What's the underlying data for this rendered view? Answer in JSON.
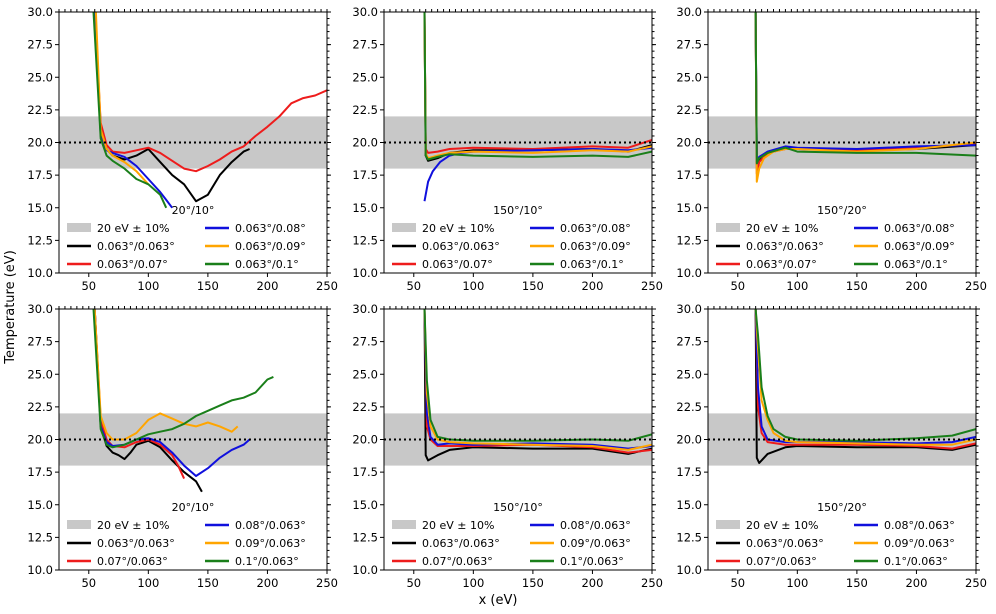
{
  "figure": {
    "xlabel": "x (eV)",
    "ylabel": "Temperature (eV)",
    "xlim": [
      25,
      250
    ],
    "ylim": [
      10,
      30
    ],
    "xticks": [
      50,
      100,
      150,
      200,
      250
    ],
    "yticks": [
      10.0,
      12.5,
      15.0,
      17.5,
      20.0,
      22.5,
      25.0,
      27.5,
      30.0
    ],
    "ytick_labels": [
      "10.0",
      "12.5",
      "15.0",
      "17.5",
      "20.0",
      "22.5",
      "25.0",
      "27.5",
      "30.0"
    ],
    "band": {
      "label": "20 eV ± 10%",
      "low": 18,
      "high": 22,
      "color": "#c8c8c8"
    },
    "reference_line": 20,
    "colors": {
      "black": "#000000",
      "red": "#ee1c1c",
      "blue": "#1010dd",
      "orange": "#ffa500",
      "green": "#1a7f1a"
    }
  },
  "chart_data": [
    {
      "type": "line",
      "title": "20°/10°",
      "legend": [
        "20 eV ± 10%",
        "0.063°/0.063°",
        "0.063°/0.07°",
        "0.063°/0.08°",
        "0.063°/0.09°",
        "0.063°/0.1°"
      ],
      "series": [
        {
          "name": "0.063°/0.063°",
          "color": "black",
          "x": [
            55,
            60,
            65,
            70,
            80,
            90,
            100,
            110,
            120,
            130,
            140,
            150,
            160,
            170,
            180,
            185
          ],
          "y": [
            30,
            21.0,
            19.5,
            19.0,
            18.7,
            19.0,
            19.5,
            18.5,
            17.5,
            16.8,
            15.5,
            16.0,
            17.5,
            18.5,
            19.3,
            19.5
          ]
        },
        {
          "name": "0.063°/0.07°",
          "color": "red",
          "x": [
            55,
            60,
            65,
            70,
            80,
            90,
            100,
            110,
            120,
            130,
            140,
            150,
            160,
            170,
            180,
            190,
            200,
            210,
            220,
            230,
            240,
            250
          ],
          "y": [
            30,
            21.5,
            19.8,
            19.3,
            19.2,
            19.4,
            19.6,
            19.2,
            18.6,
            18.0,
            17.8,
            18.2,
            18.7,
            19.3,
            19.7,
            20.5,
            21.2,
            22.0,
            23.0,
            23.4,
            23.6,
            24.0
          ]
        },
        {
          "name": "0.063°/0.08°",
          "color": "blue",
          "x": [
            55,
            60,
            65,
            70,
            80,
            90,
            100,
            110,
            115,
            120
          ],
          "y": [
            30,
            20.5,
            19.4,
            19.2,
            18.9,
            18.2,
            17.2,
            16.2,
            15.6,
            15.0
          ]
        },
        {
          "name": "0.063°/0.09°",
          "color": "orange",
          "x": [
            56,
            60,
            65,
            70,
            80,
            90,
            100
          ],
          "y": [
            30,
            21.0,
            19.5,
            19.0,
            18.5,
            17.8,
            16.8
          ]
        },
        {
          "name": "0.063°/0.1°",
          "color": "green",
          "x": [
            54,
            60,
            65,
            70,
            80,
            90,
            100,
            110,
            115
          ],
          "y": [
            30,
            20.3,
            19.0,
            18.6,
            18.0,
            17.2,
            16.8,
            16.0,
            15.0
          ]
        }
      ]
    },
    {
      "type": "line",
      "title": "150°/10°",
      "legend": [
        "20 eV ± 10%",
        "0.063°/0.063°",
        "0.063°/0.07°",
        "0.063°/0.08°",
        "0.063°/0.09°",
        "0.063°/0.1°"
      ],
      "series": [
        {
          "name": "0.063°/0.063°",
          "color": "black",
          "x": [
            59,
            60,
            62,
            70,
            80,
            100,
            150,
            200,
            230,
            250
          ],
          "y": [
            30,
            19.0,
            18.6,
            18.8,
            19.2,
            19.4,
            19.4,
            19.5,
            19.3,
            19.8
          ]
        },
        {
          "name": "0.063°/0.07°",
          "color": "red",
          "x": [
            59,
            60,
            62,
            70,
            80,
            100,
            150,
            200,
            230,
            250
          ],
          "y": [
            30,
            19.5,
            19.2,
            19.3,
            19.5,
            19.6,
            19.5,
            19.7,
            19.6,
            20.2
          ]
        },
        {
          "name": "0.063°/0.08°",
          "color": "blue",
          "x": [
            59,
            62,
            66,
            72,
            80,
            90,
            100,
            150,
            200,
            230,
            250
          ],
          "y": [
            15.5,
            17.0,
            17.8,
            18.5,
            19.0,
            19.2,
            19.3,
            19.4,
            19.5,
            19.4,
            19.6
          ]
        },
        {
          "name": "0.063°/0.09°",
          "color": "orange",
          "x": [
            59,
            60,
            62,
            70,
            80,
            100,
            150,
            200,
            230,
            250
          ],
          "y": [
            30,
            19.2,
            18.8,
            19.0,
            19.2,
            19.3,
            19.2,
            19.4,
            19.3,
            19.7
          ]
        },
        {
          "name": "0.063°/0.1°",
          "color": "green",
          "x": [
            59,
            60,
            62,
            70,
            80,
            100,
            150,
            200,
            230,
            250
          ],
          "y": [
            30,
            19.0,
            18.7,
            18.9,
            19.1,
            19.0,
            18.9,
            19.0,
            18.9,
            19.3
          ]
        }
      ]
    },
    {
      "type": "line",
      "title": "150°/20°",
      "legend": [
        "20 eV ± 10%",
        "0.063°/0.063°",
        "0.063°/0.07°",
        "0.063°/0.08°",
        "0.063°/0.09°",
        "0.063°/0.1°"
      ],
      "series": [
        {
          "name": "0.063°/0.063°",
          "color": "black",
          "x": [
            65,
            66,
            68,
            75,
            90,
            100,
            150,
            200,
            250
          ],
          "y": [
            30,
            18.3,
            18.6,
            19.2,
            19.6,
            19.5,
            19.4,
            19.5,
            19.8
          ]
        },
        {
          "name": "0.063°/0.07°",
          "color": "red",
          "x": [
            65,
            66,
            68,
            75,
            90,
            100,
            150,
            200,
            250
          ],
          "y": [
            30,
            17.6,
            18.5,
            19.2,
            19.5,
            19.5,
            19.4,
            19.6,
            19.9
          ]
        },
        {
          "name": "0.063°/0.08°",
          "color": "blue",
          "x": [
            65,
            66,
            68,
            75,
            90,
            100,
            150,
            200,
            250
          ],
          "y": [
            30,
            18.5,
            18.9,
            19.3,
            19.7,
            19.6,
            19.5,
            19.7,
            19.8
          ]
        },
        {
          "name": "0.063°/0.09°",
          "color": "orange",
          "x": [
            65,
            66,
            68,
            72,
            80,
            90,
            100,
            150,
            200,
            250
          ],
          "y": [
            30,
            17.0,
            18.0,
            18.8,
            19.3,
            19.5,
            19.5,
            19.3,
            19.5,
            20.0
          ]
        },
        {
          "name": "0.063°/0.1°",
          "color": "green",
          "x": [
            65,
            66,
            68,
            75,
            90,
            100,
            150,
            200,
            250
          ],
          "y": [
            30,
            18.4,
            18.8,
            19.2,
            19.6,
            19.3,
            19.2,
            19.2,
            19.0
          ]
        }
      ]
    },
    {
      "type": "line",
      "title": "20°/10°",
      "legend": [
        "20 eV ± 10%",
        "0.063°/0.063°",
        "0.07°/0.063°",
        "0.08°/0.063°",
        "0.09°/0.063°",
        "0.1°/0.063°"
      ],
      "series": [
        {
          "name": "0.063°/0.063°",
          "color": "black",
          "x": [
            55,
            60,
            65,
            70,
            75,
            80,
            85,
            90,
            100,
            110,
            120,
            130,
            140,
            145
          ],
          "y": [
            30,
            21.0,
            19.5,
            19.0,
            18.8,
            18.5,
            19.0,
            19.6,
            19.9,
            19.4,
            18.4,
            17.5,
            16.8,
            16.0
          ]
        },
        {
          "name": "0.07°/0.063°",
          "color": "red",
          "x": [
            55,
            60,
            65,
            70,
            80,
            90,
            100,
            110,
            120,
            125,
            130
          ],
          "y": [
            30,
            21.5,
            20.0,
            19.5,
            19.4,
            19.8,
            20.0,
            19.6,
            18.8,
            18.0,
            17.0
          ]
        },
        {
          "name": "0.08°/0.063°",
          "color": "blue",
          "x": [
            55,
            60,
            65,
            70,
            80,
            90,
            100,
            110,
            120,
            130,
            140,
            150,
            160,
            170,
            180,
            185
          ],
          "y": [
            30,
            21.0,
            19.8,
            19.5,
            19.6,
            20.0,
            20.1,
            19.8,
            19.0,
            18.0,
            17.2,
            17.8,
            18.6,
            19.2,
            19.6,
            20.0
          ]
        },
        {
          "name": "0.09°/0.063°",
          "color": "orange",
          "x": [
            55,
            60,
            65,
            70,
            80,
            90,
            100,
            110,
            120,
            130,
            140,
            150,
            160,
            170,
            175
          ],
          "y": [
            30,
            21.8,
            20.5,
            20.0,
            20.0,
            20.5,
            21.5,
            22.0,
            21.6,
            21.2,
            21.0,
            21.3,
            21.0,
            20.6,
            21.0
          ]
        },
        {
          "name": "0.1°/0.063°",
          "color": "green",
          "x": [
            54,
            60,
            65,
            70,
            80,
            90,
            100,
            110,
            120,
            130,
            140,
            150,
            160,
            170,
            180,
            190,
            200,
            205
          ],
          "y": [
            30,
            20.8,
            19.6,
            19.4,
            19.6,
            20.0,
            20.4,
            20.6,
            20.8,
            21.2,
            21.8,
            22.2,
            22.6,
            23.0,
            23.2,
            23.6,
            24.6,
            24.8
          ]
        }
      ]
    },
    {
      "type": "line",
      "title": "150°/10°",
      "legend": [
        "20 eV ± 10%",
        "0.063°/0.063°",
        "0.07°/0.063°",
        "0.08°/0.063°",
        "0.09°/0.063°",
        "0.1°/0.063°"
      ],
      "series": [
        {
          "name": "0.063°/0.063°",
          "color": "black",
          "x": [
            59,
            60,
            62,
            70,
            80,
            100,
            150,
            200,
            230,
            250
          ],
          "y": [
            30,
            18.8,
            18.4,
            18.8,
            19.2,
            19.4,
            19.3,
            19.3,
            18.9,
            19.3
          ]
        },
        {
          "name": "0.07°/0.063°",
          "color": "red",
          "x": [
            59,
            61,
            64,
            70,
            80,
            100,
            150,
            200,
            230,
            250
          ],
          "y": [
            30,
            21.0,
            20.0,
            19.5,
            19.5,
            19.5,
            19.6,
            19.4,
            19.0,
            19.2
          ]
        },
        {
          "name": "0.08°/0.063°",
          "color": "blue",
          "x": [
            59,
            61,
            64,
            70,
            80,
            100,
            150,
            200,
            230,
            250
          ],
          "y": [
            30,
            22.0,
            20.2,
            19.6,
            19.7,
            19.6,
            19.7,
            19.6,
            19.3,
            19.5
          ]
        },
        {
          "name": "0.09°/0.063°",
          "color": "orange",
          "x": [
            59,
            61,
            64,
            70,
            80,
            100,
            150,
            200,
            230,
            250
          ],
          "y": [
            30,
            23.5,
            21.0,
            20.0,
            19.8,
            19.7,
            19.6,
            19.5,
            19.2,
            19.6
          ]
        },
        {
          "name": "0.1°/0.063°",
          "color": "green",
          "x": [
            59,
            61,
            64,
            70,
            80,
            100,
            150,
            200,
            230,
            250
          ],
          "y": [
            30,
            24.5,
            21.5,
            20.2,
            20.0,
            19.9,
            19.9,
            20.0,
            19.9,
            20.4
          ]
        }
      ]
    },
    {
      "type": "line",
      "title": "150°/20°",
      "legend": [
        "20 eV ± 10%",
        "0.063°/0.063°",
        "0.07°/0.063°",
        "0.08°/0.063°",
        "0.09°/0.063°",
        "0.1°/0.063°"
      ],
      "series": [
        {
          "name": "0.063°/0.063°",
          "color": "black",
          "x": [
            65,
            66,
            68,
            75,
            90,
            100,
            150,
            200,
            230,
            250
          ],
          "y": [
            30,
            18.6,
            18.2,
            18.9,
            19.4,
            19.5,
            19.4,
            19.4,
            19.2,
            19.6
          ]
        },
        {
          "name": "0.07°/0.063°",
          "color": "red",
          "x": [
            65,
            67,
            70,
            75,
            90,
            100,
            150,
            200,
            230,
            250
          ],
          "y": [
            30,
            22.5,
            20.5,
            19.8,
            19.6,
            19.6,
            19.6,
            19.5,
            19.3,
            19.7
          ]
        },
        {
          "name": "0.08°/0.063°",
          "color": "blue",
          "x": [
            65,
            67,
            70,
            75,
            90,
            100,
            150,
            200,
            230,
            250
          ],
          "y": [
            30,
            24.0,
            21.0,
            20.0,
            19.8,
            19.8,
            19.8,
            19.7,
            19.8,
            20.2
          ]
        },
        {
          "name": "0.09°/0.063°",
          "color": "orange",
          "x": [
            65,
            67,
            70,
            75,
            80,
            90,
            100,
            150,
            200,
            230,
            250
          ],
          "y": [
            30,
            27.0,
            23.0,
            21.5,
            20.5,
            19.9,
            19.8,
            19.7,
            19.6,
            19.6,
            20.0
          ]
        },
        {
          "name": "0.1°/0.063°",
          "color": "green",
          "x": [
            65,
            67,
            70,
            75,
            80,
            90,
            100,
            150,
            200,
            230,
            250
          ],
          "y": [
            30,
            28.0,
            24.0,
            21.8,
            20.8,
            20.2,
            20.0,
            19.9,
            20.1,
            20.3,
            20.8
          ]
        }
      ]
    }
  ]
}
